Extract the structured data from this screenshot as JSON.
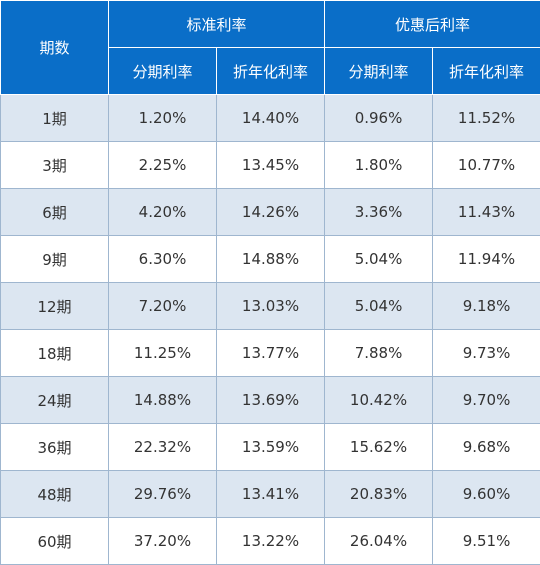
{
  "table": {
    "header": {
      "period": "期数",
      "group_standard": "标准利率",
      "group_discount": "优惠后利率",
      "sub": [
        "分期利率",
        "折年化利率",
        "分期利率",
        "折年化利率"
      ]
    },
    "rows": [
      [
        "1期",
        "1.20%",
        "14.40%",
        "0.96%",
        "11.52%"
      ],
      [
        "3期",
        "2.25%",
        "13.45%",
        "1.80%",
        "10.77%"
      ],
      [
        "6期",
        "4.20%",
        "14.26%",
        "3.36%",
        "11.43%"
      ],
      [
        "9期",
        "6.30%",
        "14.88%",
        "5.04%",
        "11.94%"
      ],
      [
        "12期",
        "7.20%",
        "13.03%",
        "5.04%",
        "9.18%"
      ],
      [
        "18期",
        "11.25%",
        "13.77%",
        "7.88%",
        "9.73%"
      ],
      [
        "24期",
        "14.88%",
        "13.69%",
        "10.42%",
        "9.70%"
      ],
      [
        "36期",
        "22.32%",
        "13.59%",
        "15.62%",
        "9.68%"
      ],
      [
        "48期",
        "29.76%",
        "13.41%",
        "20.83%",
        "9.60%"
      ],
      [
        "60期",
        "37.20%",
        "13.22%",
        "26.04%",
        "9.51%"
      ]
    ]
  },
  "colors": {
    "header_bg": "#0a6ec8",
    "header_text": "#ffffff",
    "row_alt_bg": "#dce6f1",
    "row_bg": "#ffffff",
    "border": "#9fb6cf",
    "text": "#333333"
  }
}
